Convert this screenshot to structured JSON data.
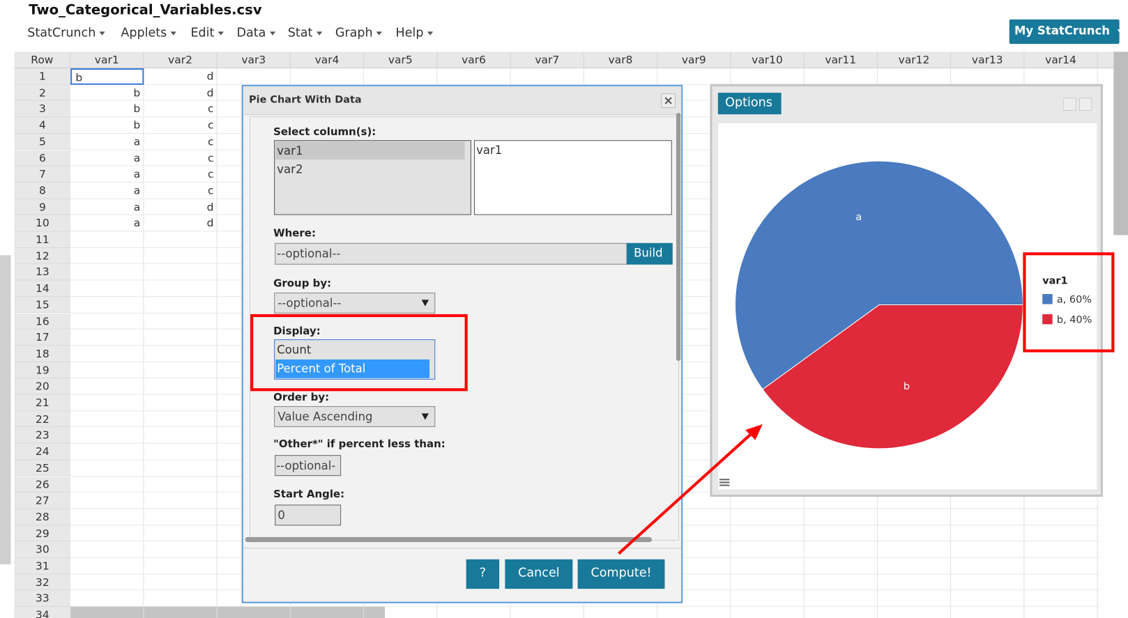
{
  "header": {
    "title": "Two_Categorical_Variables.csv",
    "menu": [
      "StatCrunch",
      "Applets",
      "Edit",
      "Data",
      "Stat",
      "Graph",
      "Help"
    ],
    "account": "My StatCrunch"
  },
  "sheet": {
    "columns": [
      "Row",
      "var1",
      "var2",
      "var3",
      "var4",
      "var5",
      "var6",
      "var7",
      "var8",
      "var9",
      "var10",
      "var11",
      "var12",
      "var13",
      "var14"
    ],
    "row_numbers": [
      1,
      2,
      3,
      4,
      5,
      6,
      7,
      8,
      9,
      10,
      11,
      12,
      13,
      14,
      15,
      16,
      17,
      18,
      19,
      20,
      21,
      22,
      23,
      24,
      25,
      26,
      27,
      28,
      29,
      30,
      31,
      32,
      33,
      34
    ],
    "var1": [
      "b",
      "b",
      "b",
      "b",
      "a",
      "a",
      "a",
      "a",
      "a",
      "a"
    ],
    "var2": [
      "d",
      "d",
      "c",
      "c",
      "c",
      "c",
      "c",
      "c",
      "d",
      "d"
    ]
  },
  "dialog": {
    "title": "Pie Chart With Data",
    "select_label": "Select column(s):",
    "columns": [
      "var1",
      "var2"
    ],
    "selected": [
      "var1"
    ],
    "where_label": "Where:",
    "where_placeholder": "--optional--",
    "build": "Build",
    "group_label": "Group by:",
    "group_value": "--optional--",
    "display_label": "Display:",
    "display_options": [
      "Count",
      "Percent of Total"
    ],
    "order_label": "Order by:",
    "order_value": "Value Ascending",
    "other_label": "\"Other*\" if percent less than:",
    "other_value": "--optional-",
    "angle_label": "Start Angle:",
    "angle_value": "0",
    "buttons": [
      "?",
      "Cancel",
      "Compute!"
    ]
  },
  "graph": {
    "tab": "Options"
  },
  "chart_data": {
    "type": "pie",
    "legend_title": "var1",
    "categories": [
      "a",
      "b"
    ],
    "values": [
      60,
      40
    ],
    "value_labels": [
      "a, 60%",
      "b, 40%"
    ],
    "colors": [
      "#4a7abf",
      "#e0293a"
    ]
  }
}
